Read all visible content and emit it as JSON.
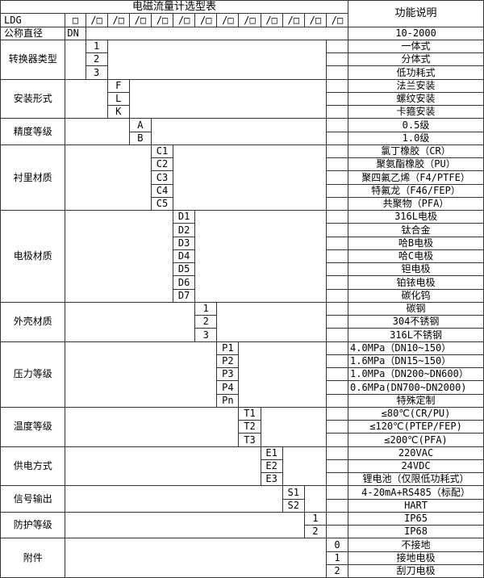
{
  "title": "电磁流量计选型表",
  "function_col_header": "功能说明",
  "model_row": {
    "prefix": "LDG",
    "first_box": "□",
    "slot": "/□",
    "slot_count": 12
  },
  "diameter_row": {
    "label": "公称直径",
    "code": "DN",
    "desc": "10-2000"
  },
  "sections": [
    {
      "label": "转换器类型",
      "col": 0,
      "rows": [
        {
          "code": "1",
          "desc": "一体式"
        },
        {
          "code": "2",
          "desc": "分体式"
        },
        {
          "code": "3",
          "desc": "低功耗式"
        }
      ]
    },
    {
      "label": "安装形式",
      "col": 1,
      "rows": [
        {
          "code": "F",
          "desc": "法兰安装"
        },
        {
          "code": "L",
          "desc": "螺纹安装"
        },
        {
          "code": "K",
          "desc": "卡箍安装"
        }
      ]
    },
    {
      "label": "精度等级",
      "col": 2,
      "rows": [
        {
          "code": "A",
          "desc": "0.5级"
        },
        {
          "code": "B",
          "desc": "1.0级"
        }
      ]
    },
    {
      "label": "衬里材质",
      "col": 3,
      "rows": [
        {
          "code": "C1",
          "desc": "氯丁橡胶（CR）"
        },
        {
          "code": "C2",
          "desc": "聚氨酯橡胶（PU）"
        },
        {
          "code": "C3",
          "desc": "聚四氟乙烯（F4/PTFE）"
        },
        {
          "code": "C4",
          "desc": "特氟龙（F46/FEP）"
        },
        {
          "code": "C5",
          "desc": "共聚物（PFA）"
        }
      ]
    },
    {
      "label": "电极材质",
      "col": 4,
      "rows": [
        {
          "code": "D1",
          "desc": "316L电极"
        },
        {
          "code": "D2",
          "desc": "钛合金"
        },
        {
          "code": "D3",
          "desc": "哈B电极"
        },
        {
          "code": "D4",
          "desc": "哈C电极"
        },
        {
          "code": "D5",
          "desc": "钽电极"
        },
        {
          "code": "D6",
          "desc": "铂铱电极"
        },
        {
          "code": "D7",
          "desc": "碳化钨"
        }
      ]
    },
    {
      "label": "外壳材质",
      "col": 5,
      "rows": [
        {
          "code": "1",
          "desc": "碳钢"
        },
        {
          "code": "2",
          "desc": "304不锈钢"
        },
        {
          "code": "3",
          "desc": "316L不锈钢"
        }
      ]
    },
    {
      "label": "压力等级",
      "col": 6,
      "rows": [
        {
          "code": "P1",
          "desc": "4.0MPa（DN10~150）",
          "left": true
        },
        {
          "code": "P2",
          "desc": "1.6MPa（DN15~150）",
          "left": true
        },
        {
          "code": "P3",
          "desc": "1.0MPa（DN200~DN600）",
          "left": true
        },
        {
          "code": "P4",
          "desc": "0.6MPa(DN700~DN2000)",
          "left": true
        },
        {
          "code": "Pn",
          "desc": "特殊定制"
        }
      ]
    },
    {
      "label": "温度等级",
      "col": 7,
      "rows": [
        {
          "code": "T1",
          "desc": "≤80℃(CR/PU)"
        },
        {
          "code": "T2",
          "desc": "≤120℃(PTEP/FEP)"
        },
        {
          "code": "T3",
          "desc": "≤200℃(PFA)"
        }
      ]
    },
    {
      "label": "供电方式",
      "col": 8,
      "rows": [
        {
          "code": "E1",
          "desc": "220VAC"
        },
        {
          "code": "E2",
          "desc": "24VDC"
        },
        {
          "code": "E3",
          "desc": "锂电池（仅限低功耗式）"
        }
      ]
    },
    {
      "label": "信号输出",
      "col": 9,
      "rows": [
        {
          "code": "S1",
          "desc": "4-20mA+RS485（标配）"
        },
        {
          "code": "S2",
          "desc": "HART"
        }
      ]
    },
    {
      "label": "防护等级",
      "col": 10,
      "rows": [
        {
          "code": "1",
          "desc": "IP65"
        },
        {
          "code": "2",
          "desc": "IP68"
        }
      ]
    },
    {
      "label": "附件",
      "col": 11,
      "rows": [
        {
          "code": "0",
          "desc": "不接地"
        },
        {
          "code": "1",
          "desc": "接地电极"
        },
        {
          "code": "2",
          "desc": "刮刀电极"
        }
      ]
    }
  ],
  "colors": {
    "border": "#333333",
    "text": "#000000",
    "background": "#ffffff"
  }
}
